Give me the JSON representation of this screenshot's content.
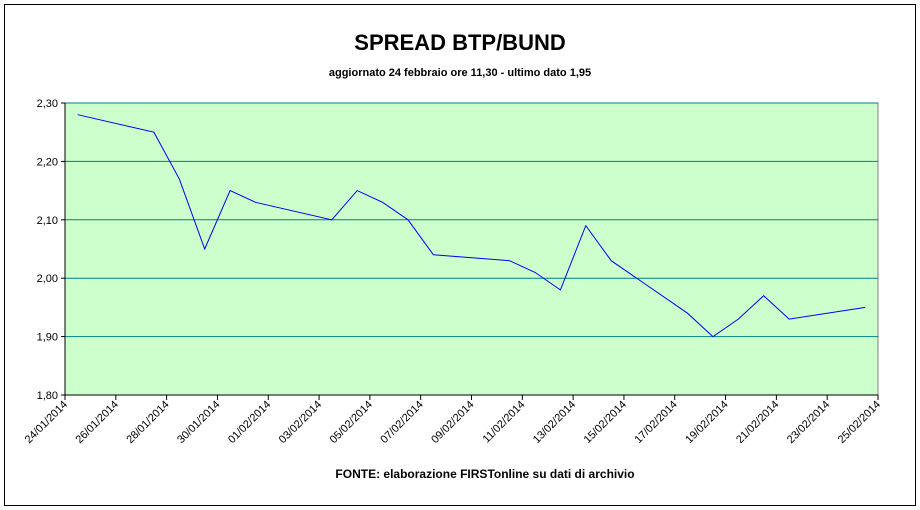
{
  "chart_data": {
    "type": "line",
    "title": "SPREAD BTP/BUND",
    "subtitle": "aggiornato 24 febbraio ore 11,30 - ultimo dato 1,95",
    "source": "FONTE: elaborazione FIRSTonline su dati di archivio",
    "x": [
      "24/01/2014",
      "27/01/2014",
      "28/01/2014",
      "29/01/2014",
      "30/01/2014",
      "31/01/2014",
      "03/02/2014",
      "04/02/2014",
      "05/02/2014",
      "06/02/2014",
      "07/02/2014",
      "10/02/2014",
      "11/02/2014",
      "12/02/2014",
      "13/02/2014",
      "14/02/2014",
      "17/02/2014",
      "18/02/2014",
      "19/02/2014",
      "20/02/2014",
      "21/02/2014",
      "24/02/2014"
    ],
    "series": [
      {
        "name": "Spread",
        "color": "#0000ff",
        "values": [
          2.28,
          2.25,
          2.17,
          2.05,
          2.15,
          2.13,
          2.1,
          2.15,
          2.13,
          2.1,
          2.04,
          2.03,
          2.01,
          1.98,
          2.09,
          2.03,
          1.94,
          1.9,
          1.93,
          1.97,
          1.93,
          1.95
        ]
      }
    ],
    "xlim": [
      "24/01/2014",
      "25/02/2014"
    ],
    "xticks": [
      "24/01/2014",
      "26/01/2014",
      "28/01/2014",
      "30/01/2014",
      "01/02/2014",
      "03/02/2014",
      "05/02/2014",
      "07/02/2014",
      "09/02/2014",
      "11/02/2014",
      "13/02/2014",
      "15/02/2014",
      "17/02/2014",
      "19/02/2014",
      "21/02/2014",
      "23/02/2014",
      "25/02/2014"
    ],
    "ylim": [
      1.8,
      2.3
    ],
    "yticks": [
      {
        "value": 1.8,
        "label": "1,80"
      },
      {
        "value": 1.9,
        "label": "1,90"
      },
      {
        "value": 2.0,
        "label": "2,00"
      },
      {
        "value": 2.1,
        "label": "2,10"
      },
      {
        "value": 2.2,
        "label": "2,20"
      },
      {
        "value": 2.3,
        "label": "2,30"
      }
    ],
    "grid": true
  }
}
